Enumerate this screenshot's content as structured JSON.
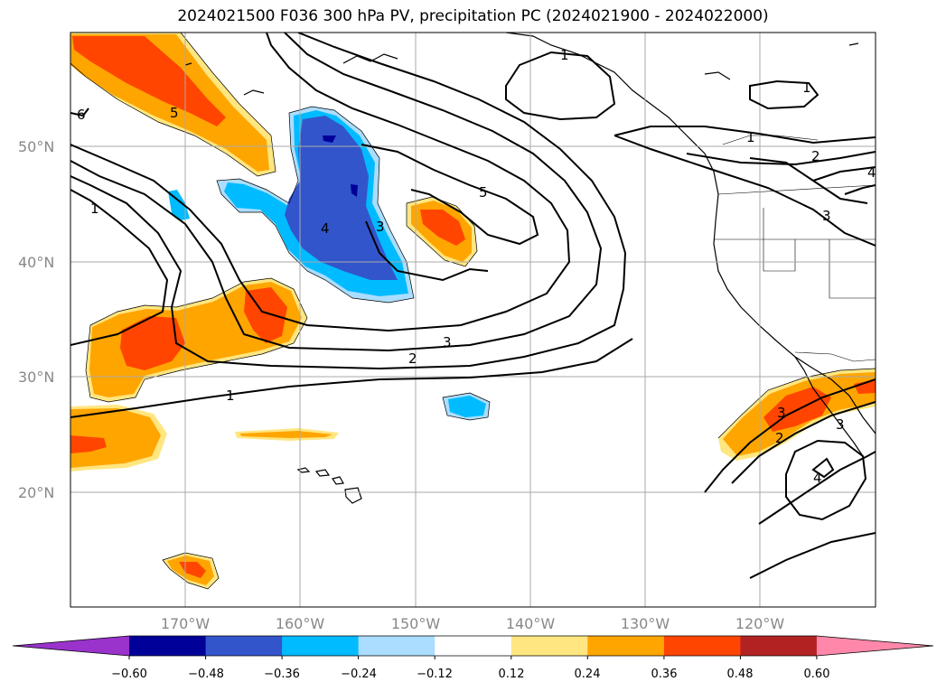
{
  "title": "2024021500 F036 300 hPa PV, precipitation PC (2024021900 - 2024022000)",
  "lat_labels": [
    "50°N",
    "40°N",
    "30°N",
    "20°N"
  ],
  "lon_labels": [
    "170°W",
    "160°W",
    "150°W",
    "140°W",
    "130°W",
    "120°W"
  ],
  "colorbar": {
    "ticks": [
      "−0.60",
      "−0.48",
      "−0.36",
      "−0.24",
      "−0.12",
      "0.12",
      "0.24",
      "0.36",
      "0.48",
      "0.60"
    ],
    "colors": [
      "#9933cc",
      "#000099",
      "#3355cc",
      "#00bbff",
      "#aaddff",
      "#ffffff",
      "#ffe680",
      "#ffa500",
      "#ff4500",
      "#b22222",
      "#ff88aa"
    ]
  },
  "contour_labels": [
    "1",
    "1",
    "2",
    "3",
    "3",
    "3",
    "4",
    "5",
    "5",
    "6",
    "1",
    "1",
    "2",
    "3",
    "4",
    "1",
    "2",
    "3",
    "4"
  ],
  "colors": {
    "pos_light": "#ffe680",
    "pos_mid": "#ffa500",
    "pos_strong": "#ff4500",
    "neg_light": "#aaddff",
    "neg_mid": "#00bbff",
    "neg_strong": "#3355cc",
    "neg_max": "#000099"
  }
}
